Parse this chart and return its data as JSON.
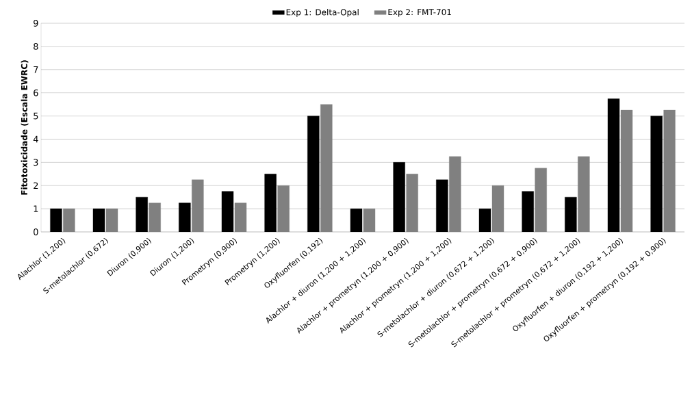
{
  "chart_data": {
    "type": "bar",
    "ylabel": "Fitotoxicidade (Escala EWRC)",
    "categories": [
      "Alachlor (1,200)",
      "S-metolachlor (0,672)",
      "Diuron (0,900)",
      "Diuron (1,200)",
      "Prometryn (0,900)",
      "Prometryn (1,200)",
      "Oxyfluorfen (0,192)",
      "Alachlor + diuron (1,200 + 1,200)",
      "Alachlor + prometryn (1,200 + 0,900)",
      "Alachlor + prometryn (1,200 + 1,200)",
      "S-metolachlor + diuron (0,672 + 1,200)",
      "S-metolachlor + prometryn (0,672 + 0,900)",
      "S-metolachlor + prometryn (0,672 + 1,200)",
      "Oxyfluorfen + diuron (0,192 + 1,200)",
      "Oxyfluorfen + prometryn (0,192 + 0,900)"
    ],
    "series": [
      {
        "name": "Exp 1: Delta-Opal",
        "color": "#000000",
        "values": [
          1,
          1,
          1.5,
          1.25,
          1.75,
          2.5,
          5,
          1,
          3,
          2.25,
          1,
          1.75,
          1.5,
          5.75,
          5
        ]
      },
      {
        "name": "Exp 2: FMT-701",
        "color": "#808080",
        "values": [
          1,
          1,
          1.25,
          2.25,
          1.25,
          2,
          5.5,
          1,
          2.5,
          3.25,
          2,
          2.75,
          3.25,
          5.25,
          5.25
        ]
      }
    ],
    "ylim": [
      0,
      9
    ],
    "yticks": [
      0,
      1,
      2,
      3,
      4,
      5,
      6,
      7,
      8,
      9
    ],
    "grid": "y",
    "legend": "top"
  }
}
